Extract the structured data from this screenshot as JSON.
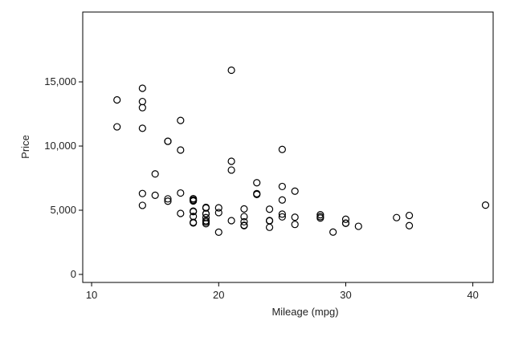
{
  "chart_data": {
    "type": "scatter",
    "x_label": "Mileage (mpg)",
    "y_label": "Price",
    "color": "#000000",
    "x": [
      22,
      17,
      22,
      20,
      15,
      18,
      26,
      20,
      16,
      19,
      14,
      14,
      21,
      29,
      16,
      22,
      22,
      24,
      19,
      30,
      18,
      16,
      17,
      28,
      21,
      12,
      12,
      14,
      22,
      14,
      15,
      18,
      14,
      20,
      21,
      19,
      19,
      18,
      19,
      24,
      16,
      28,
      34,
      25,
      26,
      18,
      18,
      18,
      19,
      19,
      19,
      24,
      17,
      23,
      25,
      23,
      35,
      24,
      21,
      30,
      25,
      28,
      30,
      14,
      26,
      35,
      18,
      31,
      18,
      23,
      41,
      25,
      25,
      17
    ],
    "y": [
      4099,
      4749,
      3799,
      4816,
      7827,
      5788,
      4453,
      5189,
      10372,
      4082,
      11385,
      14500,
      15906,
      3299,
      5705,
      4504,
      5104,
      3667,
      3955,
      3984,
      4010,
      5886,
      6342,
      4389,
      4187,
      11497,
      13594,
      13466,
      3829,
      5379,
      6165,
      4516,
      6303,
      3291,
      8814,
      5172,
      4733,
      4890,
      4181,
      4195,
      10371,
      4647,
      4425,
      4482,
      6486,
      4060,
      5798,
      4934,
      5222,
      4723,
      4424,
      4172,
      9690,
      6295,
      9735,
      6229,
      4589,
      5079,
      8129,
      4296,
      5799,
      4499,
      3995,
      12990,
      3895,
      3798,
      5899,
      3748,
      5719,
      7140,
      5397,
      4697,
      6850,
      11995
    ],
    "xlim": [
      9.3,
      41.6
    ],
    "ylim": [
      -625,
      20440
    ],
    "xticks": [
      10,
      20,
      30,
      40
    ],
    "yticks": [
      0,
      {
        "value": 5000,
        "label": "5,000"
      },
      {
        "value": 10000,
        "label": "10,000"
      },
      {
        "value": 15000,
        "label": "15,000"
      }
    ]
  }
}
